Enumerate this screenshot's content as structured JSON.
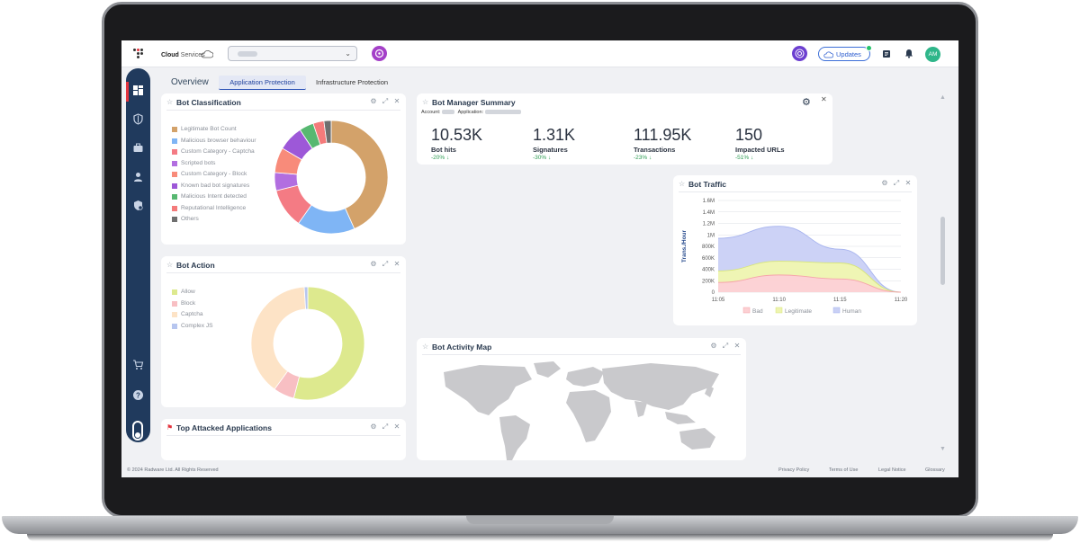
{
  "brand": {
    "name": "Cloud",
    "suffix": "Services"
  },
  "header": {
    "updates_label": "Updates",
    "avatar_initials": "AM"
  },
  "tabs": [
    {
      "label": "Overview"
    },
    {
      "label": "Application Protection"
    },
    {
      "label": "Infrastructure Protection"
    }
  ],
  "bot_classification": {
    "title": "Bot Classification",
    "chart_data": {
      "type": "pie",
      "categories": [
        "Legitimate Bot Count",
        "Malicious browser behaviour",
        "Custom Category - Captcha",
        "Scripted bots",
        "Custom Category - Block",
        "Known bad bot signatures",
        "Malicious Intent detected",
        "Reputational Intelligence",
        "Others"
      ],
      "values": [
        42,
        16,
        11,
        5,
        7,
        7,
        4,
        3,
        2
      ],
      "colors": [
        "#d3a26a",
        "#7fb5f5",
        "#f47b84",
        "#b26ee0",
        "#f88b7a",
        "#9d58d8",
        "#57b871",
        "#f47b7b",
        "#6f6f6f"
      ]
    }
  },
  "bot_action": {
    "title": "Bot Action",
    "chart_data": {
      "type": "pie",
      "categories": [
        "Allow",
        "Block",
        "Captcha",
        "Complex JS"
      ],
      "values": [
        54,
        6,
        39,
        1
      ],
      "colors": [
        "#dde98e",
        "#f8bfc3",
        "#fde3c6",
        "#b7c6ef"
      ]
    }
  },
  "top_attacked": {
    "title": "Top Attacked Applications"
  },
  "summary": {
    "title": "Bot Manager Summary",
    "account_label": "Account:",
    "application_label": "Application:",
    "kpis": [
      {
        "value": "10.53K",
        "label": "Bot hits",
        "change": "-20% ↓"
      },
      {
        "value": "1.31K",
        "label": "Signatures",
        "change": "-30% ↓"
      },
      {
        "value": "111.95K",
        "label": "Transactions",
        "change": "-23% ↓"
      },
      {
        "value": "150",
        "label": "Impacted URLs",
        "change": "-51% ↓"
      }
    ]
  },
  "bot_traffic": {
    "title": "Bot Traffic",
    "chart_data": {
      "type": "area",
      "ylabel": "Trans./Hour",
      "x": [
        "11:05",
        "11:10",
        "11:15",
        "11:20"
      ],
      "y_ticks": [
        "0",
        "200K",
        "400K",
        "600K",
        "800K",
        "1M",
        "1.2M",
        "1.4M",
        "1.6M"
      ],
      "ylim": [
        0,
        1600000
      ],
      "series": [
        {
          "name": "Bad",
          "color": "#f6a3aa",
          "fill": "#fcd0d3",
          "values": [
            170000,
            300000,
            230000,
            0
          ]
        },
        {
          "name": "Legitimate",
          "color": "#d8e67a",
          "fill": "#eef4b0",
          "values": [
            200000,
            240000,
            280000,
            0
          ]
        },
        {
          "name": "Human",
          "color": "#a6b3ee",
          "fill": "#c9d0f5",
          "values": [
            570000,
            610000,
            240000,
            0
          ]
        }
      ]
    }
  },
  "activity_map": {
    "title": "Bot Activity Map"
  },
  "footer": {
    "copyright": "© 2024 Radware Ltd. All Rights Reserved",
    "links": [
      "Privacy Policy",
      "Terms of Use",
      "Legal Notice",
      "Glossary"
    ]
  }
}
